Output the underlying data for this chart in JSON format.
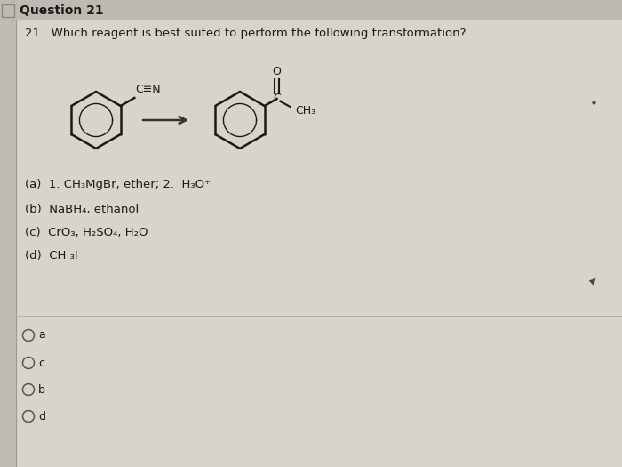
{
  "title": "Question 21",
  "question_text": "21.  Which reagent is best suited to perform the following transformation?",
  "option_a": "(a)  1. CH₃MgBr, ether; 2.  H₃O⁺",
  "option_b": "(b)  NaBH₄, ethanol",
  "option_c": "(c)  CrO₃, H₂SO₄, H₂O",
  "option_d": "(d)  CH ₃I",
  "radio_labels": [
    "a",
    "c",
    "b",
    "d"
  ],
  "bg_color": "#cbc7be",
  "header_bg": "#bebab1",
  "content_bg": "#d8d4cc",
  "left_sidebar_bg": "#c0bcb4",
  "text_color": "#1a1a1a",
  "header_text_color": "#1a1a1a",
  "ring_color": "#222222",
  "arrow_color": "#333333",
  "figwidth": 7.0,
  "figheight": 5.25,
  "dpi": 100
}
